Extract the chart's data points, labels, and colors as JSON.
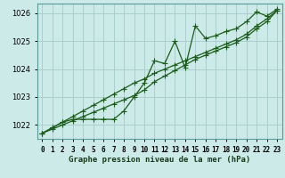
{
  "title": "Graphe pression niveau de la mer (hPa)",
  "background_color": "#cceae8",
  "grid_color": "#aacece",
  "line_color": "#1a5c1a",
  "x_labels": [
    "0",
    "1",
    "2",
    "3",
    "4",
    "5",
    "6",
    "7",
    "8",
    "9",
    "10",
    "11",
    "12",
    "13",
    "14",
    "15",
    "16",
    "17",
    "18",
    "19",
    "20",
    "21",
    "22",
    "23"
  ],
  "hours": [
    0,
    1,
    2,
    3,
    4,
    5,
    6,
    7,
    8,
    9,
    10,
    11,
    12,
    13,
    14,
    15,
    16,
    17,
    18,
    19,
    20,
    21,
    22,
    23
  ],
  "pressure": [
    1021.7,
    1021.9,
    1022.1,
    1022.2,
    1022.2,
    1022.2,
    1022.2,
    1022.2,
    1022.5,
    1023.0,
    1023.5,
    1024.3,
    1024.2,
    1025.0,
    1024.05,
    1025.55,
    1025.1,
    1025.2,
    1025.35,
    1025.45,
    1025.7,
    1026.05,
    1025.9,
    1026.15
  ],
  "trend1": [
    1021.7,
    1021.85,
    1022.0,
    1022.15,
    1022.3,
    1022.45,
    1022.6,
    1022.75,
    1022.9,
    1023.05,
    1023.25,
    1023.55,
    1023.75,
    1023.95,
    1024.15,
    1024.35,
    1024.5,
    1024.65,
    1024.8,
    1024.95,
    1025.15,
    1025.45,
    1025.7,
    1026.1
  ],
  "trend2": [
    1021.7,
    1021.9,
    1022.1,
    1022.3,
    1022.5,
    1022.7,
    1022.9,
    1023.1,
    1023.3,
    1023.5,
    1023.65,
    1023.85,
    1024.0,
    1024.15,
    1024.3,
    1024.45,
    1024.6,
    1024.75,
    1024.9,
    1025.05,
    1025.25,
    1025.55,
    1025.8,
    1026.1
  ],
  "ylim": [
    1021.5,
    1026.35
  ],
  "yticks": [
    1022,
    1023,
    1024,
    1025,
    1026
  ],
  "marker": "+",
  "marker_size": 4,
  "line_width": 0.9,
  "label_fontsize": 5.5,
  "ylabel_fontsize": 6,
  "title_fontsize": 6.5
}
